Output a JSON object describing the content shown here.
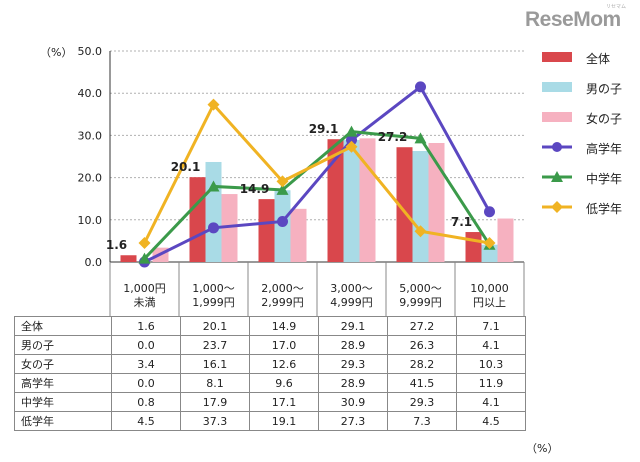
{
  "watermark": {
    "text": "ReseMom",
    "sub": "リセマム"
  },
  "chart_data": {
    "type": "bar",
    "y_unit_label": "（%）",
    "table_unit_label": "（%）",
    "ylim": [
      0,
      50
    ],
    "y_ticks": [
      "0.0",
      "10.0",
      "20.0",
      "30.0",
      "40.0",
      "50.0"
    ],
    "y_tick_values": [
      0,
      10,
      20,
      30,
      40,
      50
    ],
    "grid": true,
    "legend_position": "right",
    "categories": [
      "1,000円\n未満",
      "1,000～\n1,999円",
      "2,000～\n2,999円",
      "3,000～\n4,999円",
      "5,000～\n9,999円",
      "10,000\n円以上"
    ],
    "bar_series": [
      {
        "name": "全体",
        "color": "#d9474c",
        "values": [
          1.6,
          20.1,
          14.9,
          29.1,
          27.2,
          7.1
        ]
      },
      {
        "name": "男の子",
        "color": "#a9dbe6",
        "values": [
          0.0,
          23.7,
          17.0,
          28.9,
          26.3,
          4.1
        ]
      },
      {
        "name": "女の子",
        "color": "#f6b1c0",
        "values": [
          3.4,
          16.1,
          12.6,
          29.3,
          28.2,
          10.3
        ]
      }
    ],
    "line_series": [
      {
        "name": "高学年",
        "color": "#5b47c1",
        "marker": "circle",
        "values": [
          0.0,
          8.1,
          9.6,
          28.9,
          41.5,
          11.9
        ]
      },
      {
        "name": "中学年",
        "color": "#3b9a4a",
        "marker": "triangle",
        "values": [
          0.8,
          17.9,
          17.1,
          30.9,
          29.3,
          4.1
        ]
      },
      {
        "name": "低学年",
        "color": "#f0b323",
        "marker": "diamond",
        "values": [
          4.5,
          37.3,
          19.1,
          27.3,
          7.3,
          4.5
        ]
      }
    ],
    "data_labels": [
      "1.6",
      "20.1",
      "14.9",
      "29.1",
      "27.2",
      "7.1"
    ]
  },
  "table": {
    "rows": [
      {
        "label": "全体",
        "values": [
          "1.6",
          "20.1",
          "14.9",
          "29.1",
          "27.2",
          "7.1"
        ]
      },
      {
        "label": "男の子",
        "values": [
          "0.0",
          "23.7",
          "17.0",
          "28.9",
          "26.3",
          "4.1"
        ]
      },
      {
        "label": "女の子",
        "values": [
          "3.4",
          "16.1",
          "12.6",
          "29.3",
          "28.2",
          "10.3"
        ]
      },
      {
        "label": "高学年",
        "values": [
          "0.0",
          "8.1",
          "9.6",
          "28.9",
          "41.5",
          "11.9"
        ]
      },
      {
        "label": "中学年",
        "values": [
          "0.8",
          "17.9",
          "17.1",
          "30.9",
          "29.3",
          "4.1"
        ]
      },
      {
        "label": "低学年",
        "values": [
          "4.5",
          "37.3",
          "19.1",
          "27.3",
          "7.3",
          "4.5"
        ]
      }
    ]
  }
}
